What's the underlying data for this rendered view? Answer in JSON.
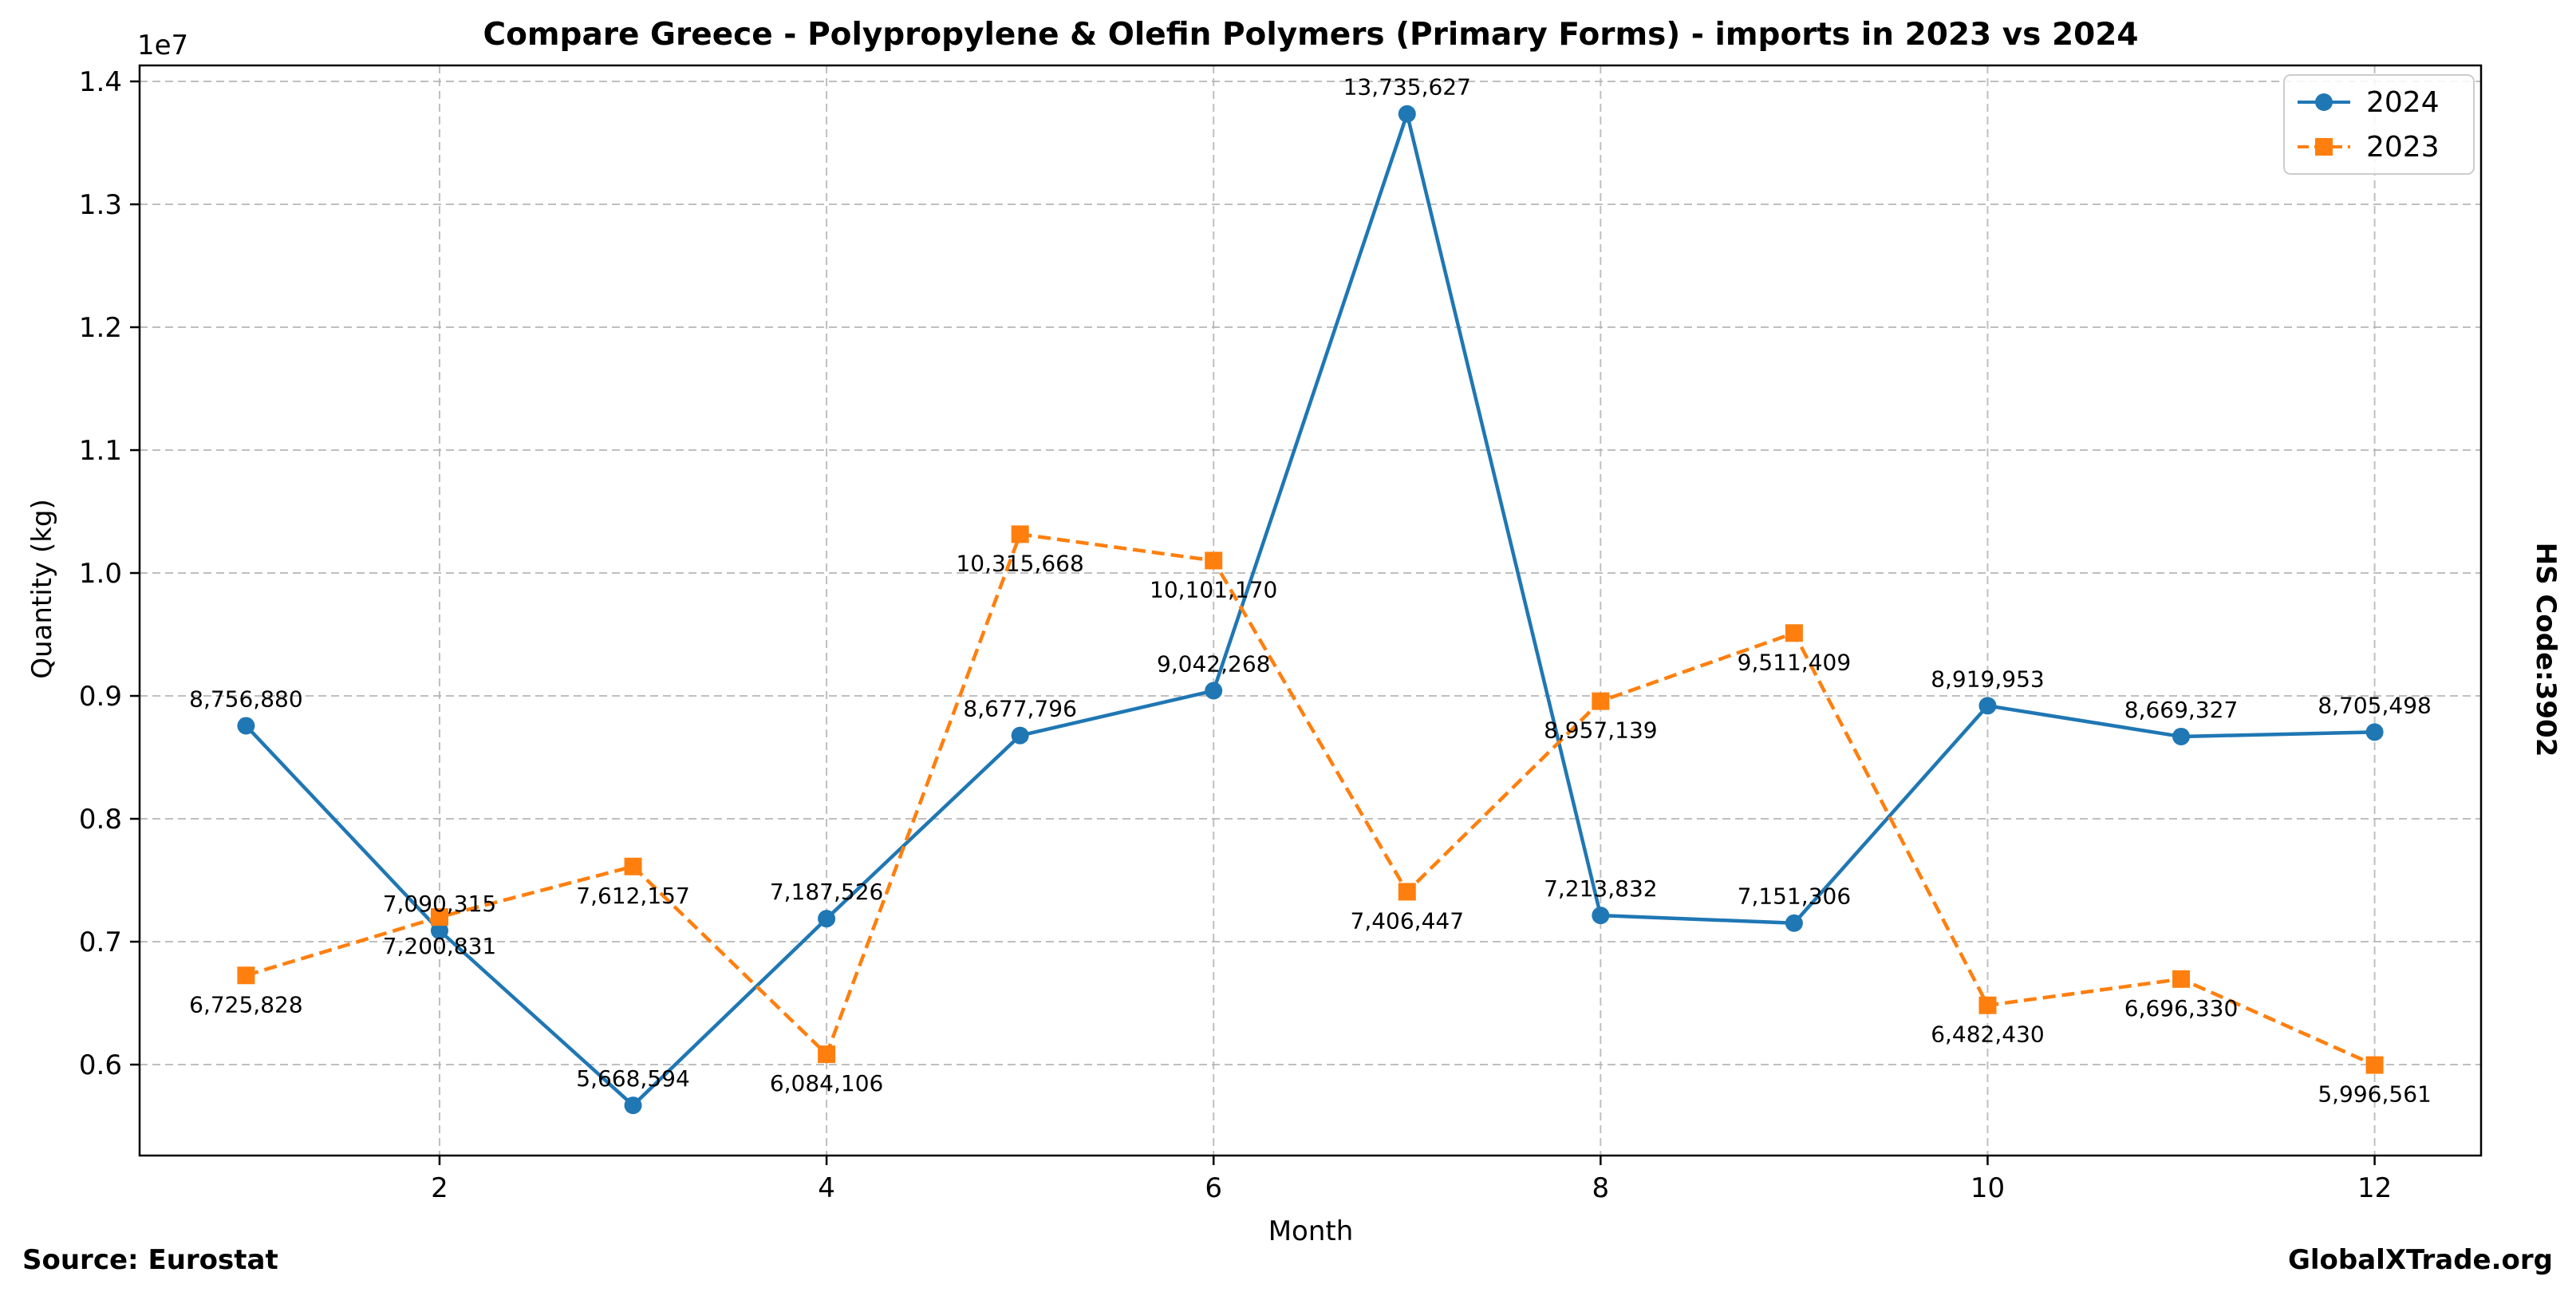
{
  "chart_data": {
    "type": "line",
    "title": "Compare Greece - Polypropylene & Olefin Polymers (Primary Forms) - imports in 2023 vs 2024",
    "xlabel": "Month",
    "ylabel": "Quantity (kg)",
    "y_offset_label": "1e7",
    "side_label": "HS Code:3902",
    "x": [
      1,
      2,
      3,
      4,
      5,
      6,
      7,
      8,
      9,
      10,
      11,
      12
    ],
    "xlim": [
      0.45,
      12.55
    ],
    "ylim": [
      5260000,
      14130000
    ],
    "x_ticks": [
      2,
      4,
      6,
      8,
      10,
      12
    ],
    "x_tick_labels": [
      "2",
      "4",
      "6",
      "8",
      "10",
      "12"
    ],
    "y_ticks": [
      6000000,
      7000000,
      8000000,
      9000000,
      10000000,
      11000000,
      12000000,
      13000000,
      14000000
    ],
    "y_tick_labels": [
      "0.6",
      "0.7",
      "0.8",
      "0.9",
      "1.0",
      "1.1",
      "1.2",
      "1.3",
      "1.4"
    ],
    "grid": true,
    "legend_position": "top-right",
    "series": [
      {
        "name": "2024",
        "color": "#1f77b4",
        "marker": "circle",
        "line_style": "solid",
        "values": [
          8756880,
          7090315,
          5668594,
          7187526,
          8677796,
          9042268,
          13735627,
          7213832,
          7151306,
          8919953,
          8669327,
          8705498
        ],
        "labels": [
          "8,756,880",
          "7,090,315",
          "5,668,594",
          "7,187,526",
          "8,677,796",
          "9,042,268",
          "13,735,627",
          "7,213,832",
          "7,151,306",
          "8,919,953",
          "8,669,327",
          "8,705,498"
        ]
      },
      {
        "name": "2023",
        "color": "#ff7f0e",
        "marker": "square",
        "line_style": "dashed",
        "values": [
          6725828,
          7200831,
          7612157,
          6084106,
          10315668,
          10101170,
          7406447,
          8957139,
          9511409,
          6482430,
          6696330,
          5996561
        ],
        "labels": [
          "6,725,828",
          "7,200,831",
          "7,612,157",
          "6,084,106",
          "10,315,668",
          "10,101,170",
          "7,406,447",
          "8,957,139",
          "9,511,409",
          "6,482,430",
          "6,696,330",
          "5,996,561"
        ]
      }
    ]
  },
  "footer": {
    "source": "Source: Eurostat",
    "brand": "GlobalXTrade.org"
  }
}
